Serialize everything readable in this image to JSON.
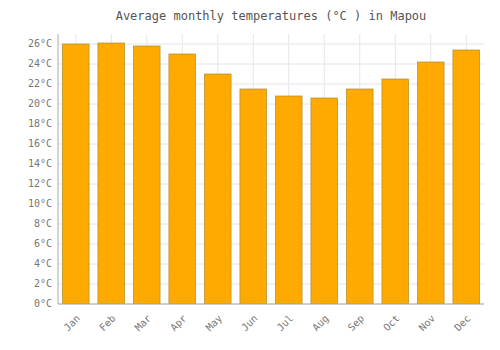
{
  "chart_data": {
    "type": "bar",
    "title": "Average monthly temperatures (°C ) in Mapou",
    "categories": [
      "Jan",
      "Feb",
      "Mar",
      "Apr",
      "May",
      "Jun",
      "Jul",
      "Aug",
      "Sep",
      "Oct",
      "Nov",
      "Dec"
    ],
    "values": [
      26.0,
      26.1,
      25.8,
      25.0,
      23.0,
      21.5,
      20.8,
      20.6,
      21.5,
      22.5,
      24.2,
      25.4
    ],
    "color": "#FFAA00",
    "ylim": [
      0,
      27
    ],
    "yticks": [
      {
        "value": 0,
        "label": "0°C"
      },
      {
        "value": 2,
        "label": "2°C"
      },
      {
        "value": 4,
        "label": "4°C"
      },
      {
        "value": 6,
        "label": "6°C"
      },
      {
        "value": 8,
        "label": "8°C"
      },
      {
        "value": 10,
        "label": "10°C"
      },
      {
        "value": 12,
        "label": "12°C"
      },
      {
        "value": 14,
        "label": "14°C"
      },
      {
        "value": 16,
        "label": "16°C"
      },
      {
        "value": 18,
        "label": "18°C"
      },
      {
        "value": 20,
        "label": "20°C"
      },
      {
        "value": 22,
        "label": "22°C"
      },
      {
        "value": 24,
        "label": "24°C"
      },
      {
        "value": 26,
        "label": "26°C"
      }
    ],
    "grid": true
  }
}
